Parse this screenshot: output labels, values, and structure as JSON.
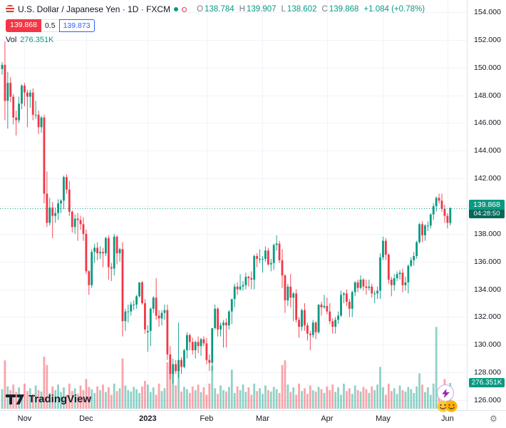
{
  "header": {
    "title_full": "U.S. Dollar / Japanese Yen · 1D · FXCM",
    "ohlc": {
      "o_label": "O",
      "o": "138.784",
      "h_label": "H",
      "h": "139.907",
      "l_label": "L",
      "l": "138.602",
      "c_label": "C",
      "c": "139.868",
      "change": "+1.084 (+0.78%)"
    },
    "sell": "139.868",
    "spread": "0.5",
    "buy": "139.873",
    "vol_label": "Vol",
    "vol_value": "276.351K"
  },
  "price_axis": {
    "ticks": [
      154,
      152,
      150,
      148,
      146,
      144,
      142,
      140,
      138,
      136,
      134,
      132,
      130,
      128,
      126
    ],
    "price_label": "139.868",
    "countdown": "04:28:50",
    "volume_label": "276.351K"
  },
  "time_axis": {
    "labels": [
      {
        "text": "Nov",
        "i": 8
      },
      {
        "text": "Dec",
        "i": 30
      },
      {
        "text": "2023",
        "i": 52,
        "bold": true
      },
      {
        "text": "Feb",
        "i": 73
      },
      {
        "text": "Mar",
        "i": 93
      },
      {
        "text": "Apr",
        "i": 116
      },
      {
        "text": "May",
        "i": 136
      },
      {
        "text": "Jun",
        "i": 159
      }
    ]
  },
  "watermark": {
    "text": "TradingView"
  },
  "colors": {
    "up": "#089981",
    "down": "#f23645",
    "vol_up": "rgba(8,153,129,0.45)",
    "vol_down": "rgba(242,54,69,0.45)",
    "grid": "#f0f3fa",
    "price_line": "#089981",
    "accent_blue": "#2962ff",
    "sell_red": "#f23645"
  },
  "chart_data": {
    "type": "candlestick",
    "symbol": "U.S. Dollar / Japanese Yen",
    "interval": "1D",
    "exchange": "FXCM",
    "current": {
      "open": 138.784,
      "high": 139.907,
      "low": 138.602,
      "close": 139.868,
      "change": "+1.084",
      "change_pct": "+0.78%"
    },
    "current_price": 139.868,
    "current_volume_k": 276.351,
    "ylim": [
      125.33,
      154.88
    ],
    "vol_max_k": 1150,
    "candles": [
      [
        149.9,
        150.4,
        149.5,
        150.2
      ],
      [
        150.2,
        151.9,
        146.2,
        147.6
      ],
      [
        147.6,
        149.7,
        145.6,
        148.9
      ],
      [
        148.9,
        149.3,
        147.5,
        147.9
      ],
      [
        147.9,
        148.1,
        145.9,
        146.4
      ],
      [
        146.4,
        146.9,
        145.1,
        146.2
      ],
      [
        146.2,
        147.9,
        146.0,
        147.4
      ],
      [
        147.4,
        148.8,
        147.0,
        148.7
      ],
      [
        148.7,
        148.9,
        147.2,
        148.2
      ],
      [
        148.2,
        148.4,
        145.7,
        147.9
      ],
      [
        147.9,
        148.4,
        147.1,
        148.2
      ],
      [
        148.2,
        148.5,
        146.2,
        146.6
      ],
      [
        146.6,
        147.6,
        146.3,
        146.6
      ],
      [
        146.6,
        146.9,
        145.2,
        145.7
      ],
      [
        145.7,
        146.5,
        145.3,
        146.4
      ],
      [
        146.4,
        146.6,
        140.2,
        140.9
      ],
      [
        140.9,
        142.5,
        138.5,
        138.8
      ],
      [
        138.8,
        140.6,
        138.6,
        139.9
      ],
      [
        139.9,
        140.3,
        137.7,
        139.3
      ],
      [
        139.3,
        139.9,
        138.8,
        139.5
      ],
      [
        139.5,
        140.5,
        139.0,
        140.2
      ],
      [
        140.2,
        140.5,
        139.5,
        140.4
      ],
      [
        140.4,
        142.2,
        139.8,
        142.1
      ],
      [
        142.1,
        142.3,
        140.9,
        141.2
      ],
      [
        141.2,
        141.8,
        139.3,
        139.6
      ],
      [
        139.6,
        139.7,
        138.1,
        138.5
      ],
      [
        138.5,
        139.4,
        138.0,
        139.1
      ],
      [
        139.1,
        139.5,
        137.5,
        139.0
      ],
      [
        139.0,
        139.3,
        138.3,
        138.7
      ],
      [
        138.7,
        139.2,
        137.5,
        138.0
      ],
      [
        138.0,
        138.3,
        135.1,
        135.3
      ],
      [
        135.3,
        135.4,
        133.6,
        134.3
      ],
      [
        134.3,
        136.9,
        134.1,
        136.7
      ],
      [
        136.7,
        137.3,
        135.9,
        137.0
      ],
      [
        137.0,
        137.4,
        136.1,
        136.6
      ],
      [
        136.6,
        137.1,
        136.2,
        136.7
      ],
      [
        136.7,
        137.0,
        135.6,
        136.6
      ],
      [
        136.6,
        137.8,
        136.4,
        137.7
      ],
      [
        137.7,
        137.9,
        134.7,
        135.6
      ],
      [
        135.6,
        135.9,
        134.6,
        135.5
      ],
      [
        135.5,
        138.0,
        135.0,
        137.8
      ],
      [
        137.8,
        137.9,
        135.8,
        136.6
      ],
      [
        136.6,
        137.0,
        136.0,
        136.9
      ],
      [
        136.9,
        137.4,
        130.6,
        131.7
      ],
      [
        131.7,
        132.6,
        131.0,
        132.4
      ],
      [
        132.4,
        132.9,
        131.6,
        132.4
      ],
      [
        132.4,
        133.1,
        132.1,
        132.9
      ],
      [
        132.9,
        133.2,
        132.5,
        132.9
      ],
      [
        132.9,
        133.6,
        132.6,
        133.5
      ],
      [
        133.5,
        134.5,
        133.4,
        134.5
      ],
      [
        134.5,
        134.6,
        132.9,
        133.0
      ],
      [
        133.0,
        133.3,
        130.8,
        131.1
      ],
      [
        130.9,
        131.4,
        129.5,
        131.0
      ],
      [
        131.0,
        132.7,
        129.9,
        132.6
      ],
      [
        132.6,
        133.5,
        132.3,
        133.4
      ],
      [
        133.4,
        134.8,
        131.8,
        132.1
      ],
      [
        132.1,
        132.5,
        131.3,
        131.9
      ],
      [
        131.9,
        132.5,
        131.4,
        132.3
      ],
      [
        132.3,
        132.9,
        131.8,
        132.5
      ],
      [
        132.5,
        132.9,
        128.9,
        129.3
      ],
      [
        129.3,
        129.9,
        127.5,
        127.9
      ],
      [
        127.9,
        129.0,
        127.2,
        128.6
      ],
      [
        128.6,
        128.9,
        127.9,
        128.1
      ],
      [
        128.1,
        131.6,
        127.6,
        128.9
      ],
      [
        128.9,
        129.1,
        127.9,
        128.4
      ],
      [
        128.4,
        129.7,
        128.3,
        129.6
      ],
      [
        129.6,
        130.9,
        129.0,
        130.7
      ],
      [
        130.7,
        130.8,
        129.6,
        130.2
      ],
      [
        130.2,
        130.5,
        129.3,
        129.6
      ],
      [
        129.6,
        130.3,
        129.0,
        130.2
      ],
      [
        130.2,
        130.6,
        129.4,
        129.9
      ],
      [
        129.9,
        130.5,
        129.2,
        130.4
      ],
      [
        130.4,
        130.6,
        129.9,
        130.1
      ],
      [
        130.1,
        130.5,
        128.6,
        128.9
      ],
      [
        128.9,
        129.3,
        128.1,
        128.7
      ],
      [
        128.7,
        131.2,
        128.1,
        131.2
      ],
      [
        131.2,
        132.9,
        131.1,
        132.6
      ],
      [
        132.6,
        132.7,
        130.6,
        131.1
      ],
      [
        131.1,
        131.6,
        130.6,
        131.4
      ],
      [
        131.4,
        131.8,
        129.8,
        131.6
      ],
      [
        131.6,
        131.9,
        129.8,
        131.4
      ],
      [
        131.4,
        132.5,
        131.1,
        132.4
      ],
      [
        132.4,
        133.3,
        131.5,
        133.3
      ],
      [
        133.3,
        134.4,
        132.7,
        134.2
      ],
      [
        134.2,
        134.5,
        133.6,
        134.0
      ],
      [
        134.0,
        135.1,
        133.9,
        134.2
      ],
      [
        134.2,
        134.6,
        133.9,
        134.3
      ],
      [
        134.3,
        135.2,
        134.0,
        134.9
      ],
      [
        134.9,
        135.0,
        134.2,
        134.8
      ],
      [
        134.8,
        135.3,
        134.0,
        134.7
      ],
      [
        134.7,
        136.5,
        134.0,
        136.4
      ],
      [
        136.4,
        136.6,
        135.6,
        136.2
      ],
      [
        136.2,
        136.9,
        135.9,
        136.2
      ],
      [
        136.2,
        136.4,
        135.2,
        136.2
      ],
      [
        136.2,
        137.1,
        136.0,
        136.8
      ],
      [
        136.8,
        137.0,
        135.7,
        135.8
      ],
      [
        135.8,
        136.2,
        135.3,
        135.9
      ],
      [
        135.9,
        137.3,
        135.4,
        137.2
      ],
      [
        137.2,
        137.9,
        136.8,
        137.3
      ],
      [
        137.3,
        137.5,
        135.9,
        136.1
      ],
      [
        136.1,
        136.9,
        134.1,
        135.0
      ],
      [
        135.0,
        135.1,
        132.3,
        133.2
      ],
      [
        133.2,
        134.4,
        132.8,
        134.2
      ],
      [
        134.2,
        135.1,
        132.7,
        133.4
      ],
      [
        133.4,
        133.8,
        131.7,
        133.7
      ],
      [
        133.7,
        134.0,
        131.6,
        131.8
      ],
      [
        131.8,
        132.0,
        130.5,
        131.3
      ],
      [
        131.3,
        132.6,
        131.0,
        132.5
      ],
      [
        132.5,
        133.0,
        131.0,
        131.4
      ],
      [
        131.4,
        131.6,
        130.3,
        130.8
      ],
      [
        130.8,
        131.0,
        129.6,
        130.7
      ],
      [
        130.7,
        131.8,
        130.5,
        131.6
      ],
      [
        131.6,
        131.7,
        130.4,
        130.9
      ],
      [
        130.9,
        132.9,
        130.8,
        132.9
      ],
      [
        132.9,
        133.1,
        132.1,
        132.7
      ],
      [
        132.7,
        133.6,
        132.6,
        132.8
      ],
      [
        132.8,
        133.4,
        132.2,
        132.4
      ],
      [
        132.4,
        133.0,
        131.5,
        131.7
      ],
      [
        131.7,
        131.9,
        130.8,
        131.3
      ],
      [
        131.3,
        132.0,
        130.8,
        131.8
      ],
      [
        131.8,
        132.4,
        131.5,
        132.1
      ],
      [
        132.1,
        133.9,
        132.0,
        133.6
      ],
      [
        133.6,
        133.8,
        133.0,
        133.7
      ],
      [
        133.7,
        134.0,
        132.8,
        133.1
      ],
      [
        133.1,
        133.3,
        132.0,
        132.6
      ],
      [
        132.6,
        133.9,
        132.0,
        133.8
      ],
      [
        133.8,
        134.6,
        133.5,
        134.5
      ],
      [
        134.5,
        134.7,
        133.8,
        134.1
      ],
      [
        134.1,
        135.0,
        134.0,
        134.7
      ],
      [
        134.7,
        134.8,
        133.9,
        134.2
      ],
      [
        134.2,
        134.7,
        133.6,
        134.1
      ],
      [
        134.1,
        134.7,
        133.9,
        134.2
      ],
      [
        134.2,
        134.4,
        133.4,
        133.7
      ],
      [
        133.7,
        133.9,
        133.0,
        133.7
      ],
      [
        133.7,
        134.2,
        133.3,
        133.9
      ],
      [
        133.9,
        136.6,
        133.3,
        136.3
      ],
      [
        136.3,
        137.8,
        136.1,
        137.5
      ],
      [
        137.5,
        137.7,
        136.1,
        136.5
      ],
      [
        136.5,
        136.6,
        134.4,
        134.7
      ],
      [
        134.7,
        134.9,
        133.5,
        134.3
      ],
      [
        134.3,
        135.1,
        133.9,
        134.8
      ],
      [
        134.8,
        135.3,
        134.6,
        135.1
      ],
      [
        135.1,
        135.4,
        134.7,
        135.2
      ],
      [
        135.2,
        135.5,
        133.8,
        134.3
      ],
      [
        134.3,
        134.9,
        133.9,
        134.5
      ],
      [
        134.5,
        135.8,
        133.7,
        135.7
      ],
      [
        135.7,
        136.3,
        135.6,
        136.1
      ],
      [
        136.1,
        136.7,
        135.7,
        136.4
      ],
      [
        136.4,
        137.5,
        136.2,
        137.4
      ],
      [
        137.4,
        138.8,
        137.3,
        138.7
      ],
      [
        138.7,
        138.9,
        137.4,
        137.9
      ],
      [
        137.9,
        138.7,
        137.5,
        138.6
      ],
      [
        138.6,
        138.9,
        138.2,
        138.6
      ],
      [
        138.6,
        139.5,
        138.4,
        139.4
      ],
      [
        139.4,
        140.2,
        139.0,
        140.0
      ],
      [
        140.0,
        140.7,
        139.6,
        140.6
      ],
      [
        140.6,
        140.9,
        140.2,
        140.4
      ],
      [
        140.4,
        140.9,
        139.6,
        139.8
      ],
      [
        139.8,
        140.1,
        138.8,
        139.3
      ],
      [
        139.3,
        139.5,
        138.4,
        138.8
      ],
      [
        138.784,
        139.907,
        138.602,
        139.868
      ]
    ],
    "volumes_k": [
      210,
      520,
      240,
      200,
      260,
      180,
      230,
      150,
      270,
      190,
      220,
      160,
      250,
      200,
      185,
      560,
      470,
      170,
      240,
      200,
      260,
      180,
      230,
      150,
      270,
      190,
      220,
      160,
      250,
      200,
      320,
      235,
      210,
      170,
      240,
      200,
      260,
      180,
      230,
      150,
      270,
      190,
      220,
      540,
      250,
      200,
      185,
      235,
      210,
      170,
      240,
      300,
      260,
      180,
      230,
      150,
      270,
      190,
      220,
      500,
      470,
      430,
      250,
      480,
      185,
      235,
      210,
      170,
      240,
      200,
      260,
      180,
      230,
      150,
      270,
      460,
      220,
      160,
      250,
      200,
      185,
      235,
      420,
      170,
      240,
      200,
      260,
      180,
      230,
      150,
      270,
      190,
      220,
      160,
      250,
      200,
      185,
      235,
      210,
      170,
      470,
      520,
      260,
      180,
      230,
      150,
      270,
      190,
      220,
      160,
      250,
      200,
      185,
      235,
      210,
      170,
      240,
      200,
      260,
      180,
      230,
      150,
      270,
      190,
      220,
      160,
      250,
      200,
      185,
      235,
      210,
      170,
      240,
      200,
      260,
      450,
      230,
      150,
      270,
      190,
      220,
      160,
      250,
      200,
      185,
      235,
      210,
      170,
      240,
      380,
      260,
      180,
      230,
      150,
      270,
      880,
      220,
      160,
      320,
      200,
      276.351
    ]
  }
}
